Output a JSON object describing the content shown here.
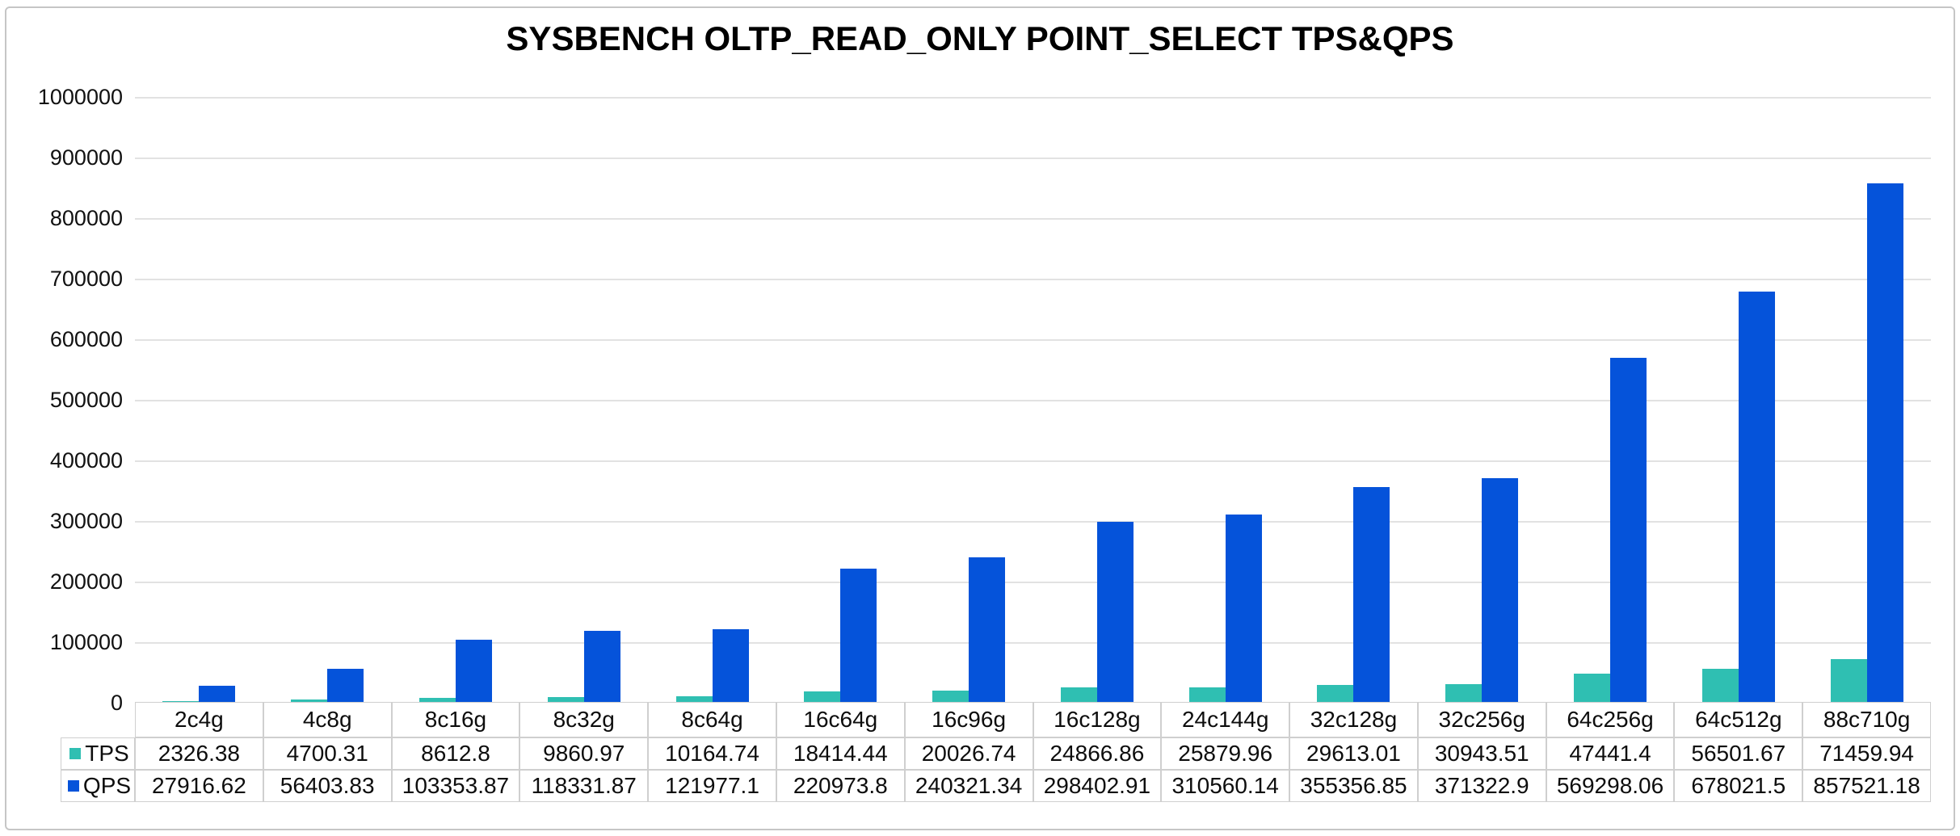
{
  "chart_data": {
    "type": "bar",
    "title": "SYSBENCH OLTP_READ_ONLY POINT_SELECT TPS&QPS",
    "categories": [
      "2c4g",
      "4c8g",
      "8c16g",
      "8c32g",
      "8c64g",
      "16c64g",
      "16c96g",
      "16c128g",
      "24c144g",
      "32c128g",
      "32c256g",
      "64c256g",
      "64c512g",
      "88c710g"
    ],
    "series": [
      {
        "name": "TPS",
        "color": "#2fbfb2",
        "values": [
          2326.38,
          4700.31,
          8612.8,
          9860.97,
          10164.74,
          18414.44,
          20026.74,
          24866.86,
          25879.96,
          29613.01,
          30943.51,
          47441.4,
          56501.67,
          71459.94
        ]
      },
      {
        "name": "QPS",
        "color": "#0553da",
        "values": [
          27916.62,
          56403.83,
          103353.87,
          118331.87,
          121977.1,
          220973.8,
          240321.34,
          298402.91,
          310560.14,
          355356.85,
          371322.9,
          569298.06,
          678021.5,
          857521.18
        ]
      }
    ],
    "ylim": [
      0,
      1000000
    ],
    "ytick_step": 100000,
    "ytick_labels": [
      "1000000",
      "900000",
      "800000",
      "700000",
      "600000",
      "500000",
      "400000",
      "300000",
      "200000",
      "100000",
      "0"
    ],
    "grid": true,
    "legend_position": "data-table-left",
    "colors": {
      "gridline": "#e2e2e2",
      "table_border": "#cfcfcf",
      "frame_border": "#c6c6c6",
      "text": "#0d0d0d"
    }
  }
}
